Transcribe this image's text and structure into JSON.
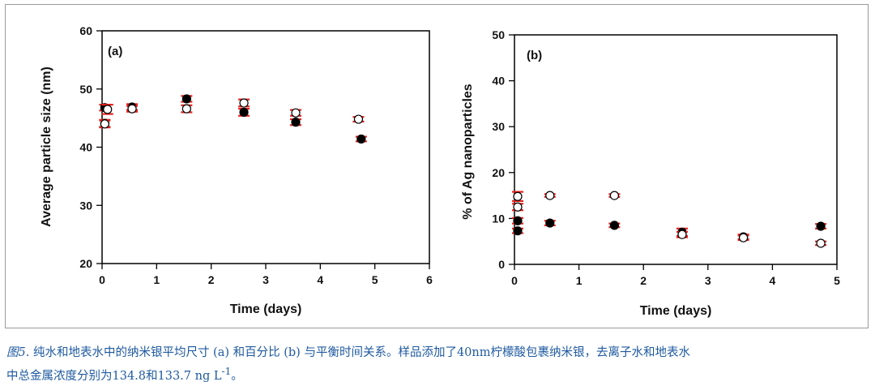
{
  "chart_data": [
    {
      "type": "scatter",
      "panel_label": "(a)",
      "xlabel": "Time (days)",
      "ylabel": "Average particle size (nm)",
      "xlim": [
        0,
        6
      ],
      "ylim": [
        20,
        60
      ],
      "xticks": [
        0,
        1,
        2,
        3,
        4,
        5,
        6
      ],
      "yticks": [
        20,
        30,
        40,
        50,
        60
      ],
      "series": [
        {
          "name": "filled",
          "marker": "filled-circle",
          "points": [
            {
              "x": 0.05,
              "y": 46.8,
              "err": 0.5
            },
            {
              "x": 0.05,
              "y": 44.1,
              "err": 0.6
            },
            {
              "x": 0.55,
              "y": 46.9,
              "err": 0.5
            },
            {
              "x": 1.55,
              "y": 48.3,
              "err": 0.5
            },
            {
              "x": 2.6,
              "y": 46.0,
              "err": 0.6
            },
            {
              "x": 3.55,
              "y": 44.3,
              "err": 0.5
            },
            {
              "x": 4.75,
              "y": 41.4,
              "err": 0.4
            }
          ]
        },
        {
          "name": "open",
          "marker": "open-circle",
          "points": [
            {
              "x": 0.05,
              "y": 44.0,
              "err": 0.6
            },
            {
              "x": 0.1,
              "y": 46.5,
              "err": 0.8
            },
            {
              "x": 0.55,
              "y": 46.6,
              "err": 0.5
            },
            {
              "x": 1.55,
              "y": 46.6,
              "err": 0.6
            },
            {
              "x": 2.6,
              "y": 47.6,
              "err": 0.6
            },
            {
              "x": 3.55,
              "y": 45.9,
              "err": 0.5
            },
            {
              "x": 4.7,
              "y": 44.8,
              "err": 0.4
            }
          ]
        }
      ]
    },
    {
      "type": "scatter",
      "panel_label": "(b)",
      "xlabel": "Time (days)",
      "ylabel": "% of Ag nanoparticles",
      "xlim": [
        0,
        5
      ],
      "ylim": [
        0,
        50
      ],
      "xticks": [
        0,
        1,
        2,
        3,
        4,
        5
      ],
      "yticks": [
        0,
        10,
        20,
        30,
        40,
        50
      ],
      "series": [
        {
          "name": "filled",
          "marker": "filled-circle",
          "points": [
            {
              "x": 0.05,
              "y": 9.5,
              "err": 0.6
            },
            {
              "x": 0.05,
              "y": 7.3,
              "err": 0.5
            },
            {
              "x": 0.55,
              "y": 9.0,
              "err": 0.5
            },
            {
              "x": 1.55,
              "y": 8.5,
              "err": 0.4
            },
            {
              "x": 2.6,
              "y": 7.0,
              "err": 0.8
            },
            {
              "x": 3.55,
              "y": 6.0,
              "err": 0.5
            },
            {
              "x": 4.75,
              "y": 8.3,
              "err": 0.5
            }
          ]
        },
        {
          "name": "open",
          "marker": "open-circle",
          "points": [
            {
              "x": 0.05,
              "y": 14.8,
              "err": 1.0
            },
            {
              "x": 0.05,
              "y": 12.5,
              "err": 0.7
            },
            {
              "x": 0.55,
              "y": 15.0,
              "err": 0.3
            },
            {
              "x": 1.55,
              "y": 15.0,
              "err": 0.3
            },
            {
              "x": 2.6,
              "y": 6.5,
              "err": 0.6
            },
            {
              "x": 3.55,
              "y": 5.8,
              "err": 0.5
            },
            {
              "x": 4.75,
              "y": 4.6,
              "err": 0.4
            }
          ]
        }
      ]
    }
  ],
  "colors": {
    "error_bar": "#e8231f",
    "marker_fill": "#000000",
    "marker_open": "#ffffff",
    "caption": "#1f5aa0"
  },
  "caption": {
    "lead": "图5.",
    "line1": " 纯水和地表水中的纳米银平均尺寸 (a) 和百分比 (b) 与平衡时间关系。样品添加了40nm柠檬酸包裹纳米银，去离子水和地表水",
    "line2": "中总金属浓度分别为134.8和133.7 ng L",
    "sup": "-1",
    "end": "。"
  }
}
